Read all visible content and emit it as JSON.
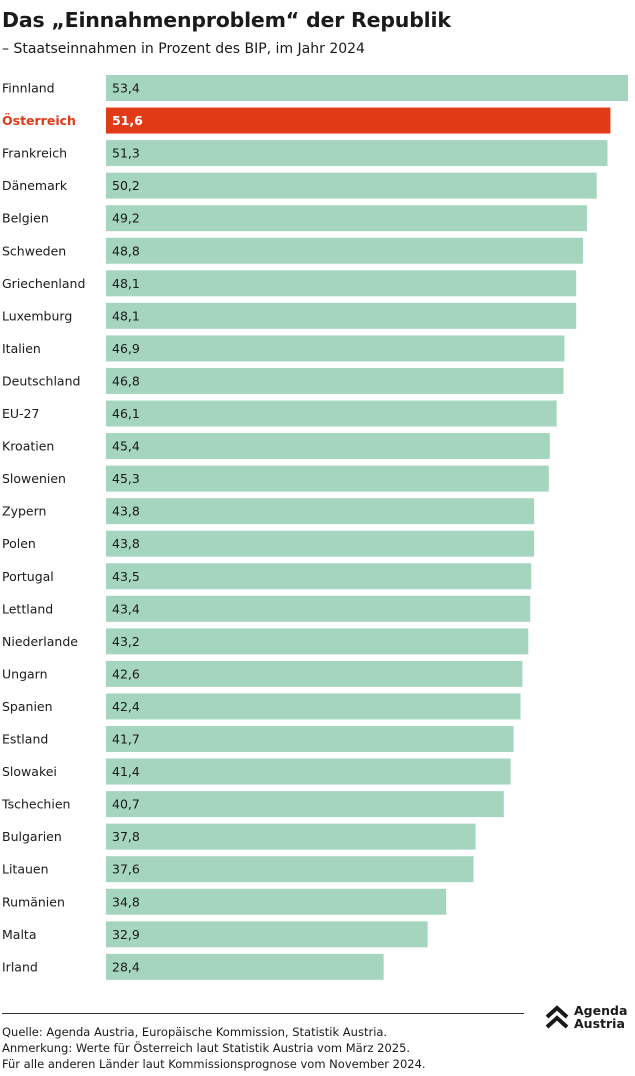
{
  "header": {
    "title": "Das „Einnahmenproblem“ der Republik",
    "subtitle": "– Staatseinnahmen in Prozent des BIP, im Jahr 2024"
  },
  "chart_data": {
    "type": "bar",
    "orientation": "horizontal",
    "categories": [
      "Finnland",
      "Österreich",
      "Frankreich",
      "Dänemark",
      "Belgien",
      "Schweden",
      "Griechenland",
      "Luxemburg",
      "Italien",
      "Deutschland",
      "EU-27",
      "Kroatien",
      "Slowenien",
      "Zypern",
      "Polen",
      "Portugal",
      "Lettland",
      "Niederlande",
      "Ungarn",
      "Spanien",
      "Estland",
      "Slowakei",
      "Tschechien",
      "Bulgarien",
      "Litauen",
      "Rumänien",
      "Malta",
      "Irland"
    ],
    "values": [
      53.4,
      51.6,
      51.3,
      50.2,
      49.2,
      48.8,
      48.1,
      48.1,
      46.9,
      46.8,
      46.1,
      45.4,
      45.3,
      43.8,
      43.8,
      43.5,
      43.4,
      43.2,
      42.6,
      42.4,
      41.7,
      41.4,
      40.7,
      37.8,
      37.6,
      34.8,
      32.9,
      28.4
    ],
    "value_labels": [
      "53,4",
      "51,6",
      "51,3",
      "50,2",
      "49,2",
      "48,8",
      "48,1",
      "48,1",
      "46,9",
      "46,8",
      "46,1",
      "45,4",
      "45,3",
      "43,8",
      "43,8",
      "43,5",
      "43,4",
      "43,2",
      "42,6",
      "42,4",
      "41,7",
      "41,4",
      "40,7",
      "37,8",
      "37,6",
      "34,8",
      "32,9",
      "28,4"
    ],
    "highlight": "Österreich",
    "xlim": [
      0,
      53.4
    ],
    "grid": false,
    "colors": {
      "bar": "#a6d5bf",
      "highlight": "#e03a16"
    }
  },
  "footer": {
    "source_lines": [
      "Quelle: Agenda Austria, Europäische Kommission, Statistik Austria.",
      "Anmerkung: Werte für Österreich laut Statistik Austria vom März 2025.",
      "Für alle anderen Länder laut Kommissionsprognose vom November 2024."
    ],
    "logo_line1": "Agenda",
    "logo_line2": "Austria"
  }
}
